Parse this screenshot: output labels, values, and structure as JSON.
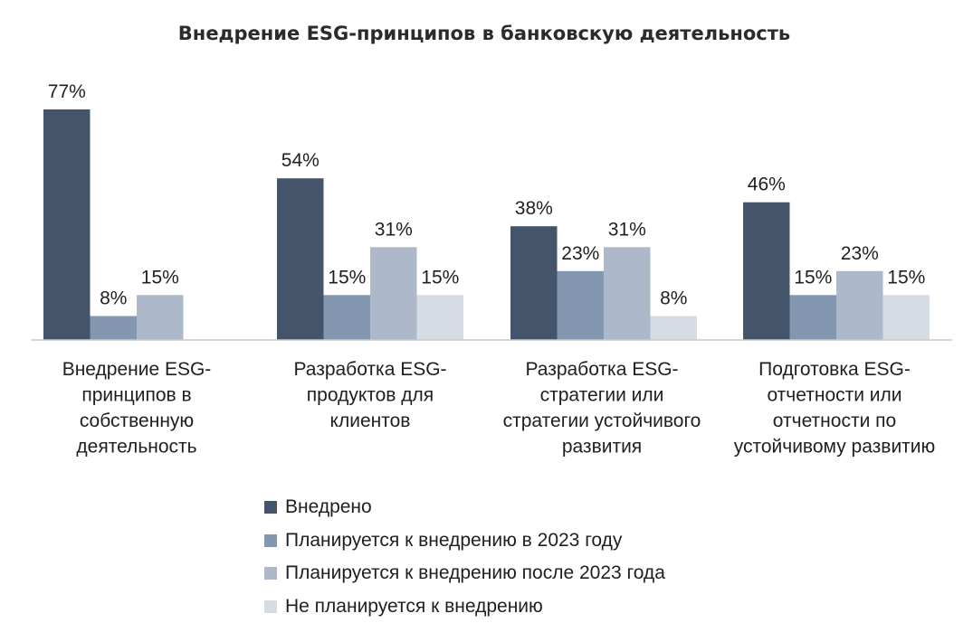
{
  "chart_data": {
    "type": "bar",
    "title": "Внедрение ESG-принципов в банковскую деятельность",
    "categories": [
      [
        "Внедрение ESG-",
        "принципов в",
        "собственную",
        "деятельность"
      ],
      [
        "Разработка ESG-",
        "продуктов для",
        "клиентов"
      ],
      [
        "Разработка ESG-",
        "стратегии или",
        "стратегии устойчивого",
        "развития"
      ],
      [
        "Подготовка ESG-",
        "отчетности или",
        "отчетности по",
        "устойчивому развитию"
      ]
    ],
    "series": [
      {
        "name": "Внедрено",
        "color": "#44546a",
        "values": [
          77,
          54,
          38,
          46
        ],
        "labels": [
          "77%",
          "54%",
          "38%",
          "46%"
        ]
      },
      {
        "name": "Планируется к внедрению в 2023 году",
        "color": "#8497b0",
        "values": [
          8,
          15,
          23,
          15
        ],
        "labels": [
          "8%",
          "15%",
          "23%",
          "15%"
        ]
      },
      {
        "name": "Планируется к внедрению после 2023 года",
        "color": "#adb9ca",
        "values": [
          15,
          31,
          31,
          23
        ],
        "labels": [
          "15%",
          "31%",
          "31%",
          "23%"
        ]
      },
      {
        "name": "Не планируется к внедрению",
        "color": "#d6dce4",
        "values": [
          null,
          15,
          8,
          15
        ],
        "labels": [
          null,
          "15%",
          "8%",
          "15%"
        ]
      }
    ],
    "ylim": [
      0,
      77
    ],
    "xlabel": "",
    "ylabel": "",
    "legend_position": "bottom-center",
    "grid": false
  }
}
